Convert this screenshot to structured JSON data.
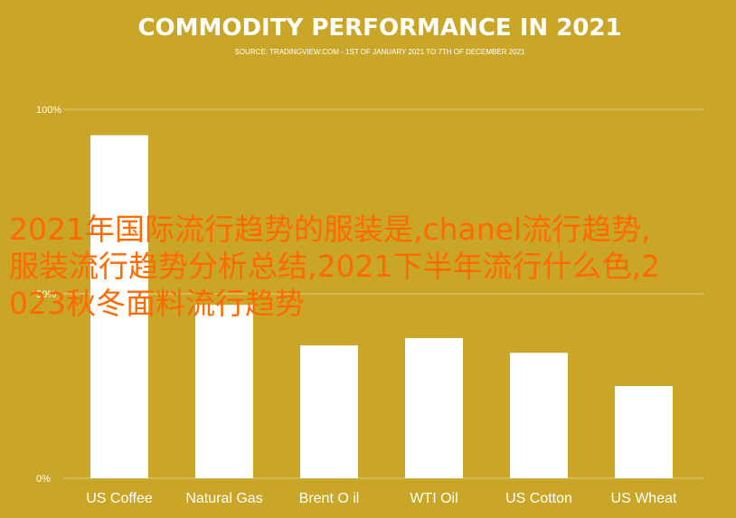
{
  "colors": {
    "background": "#c9a628",
    "bar": "#ffffff",
    "grid": "#e2cf84",
    "overlay_text": "#ff6a00"
  },
  "chart_data": {
    "type": "bar",
    "title": "COMMODITY PERFORMANCE IN 2021",
    "subtitle": "SOURCE: TRADINGVIEW.COM - 1ST OF JANUARY 2021 TO 7TH OF DECEMBER 2021",
    "categories": [
      "US Coffee",
      "Natural Gas",
      "Brent O il",
      "WTI Oil",
      "US Cotton",
      "US Wheat"
    ],
    "values": [
      93,
      47,
      36,
      38,
      34,
      25
    ],
    "ylim": [
      0,
      100
    ],
    "yticks": [
      0,
      50,
      100
    ],
    "ytick_labels": [
      "0%",
      "50%",
      "100%"
    ],
    "grid": true,
    "legend": "none"
  },
  "overlay": {
    "text": "2021年国际流行趋势的服装是,chanel流行趋势,服装流行趋势分析总结,2021下半年流行什么色,2023秋冬面料流行趋势"
  }
}
